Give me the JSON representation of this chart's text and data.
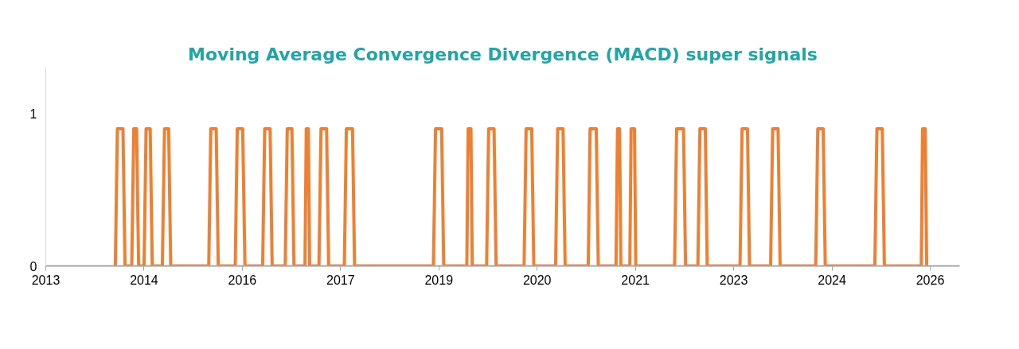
{
  "chart_data": {
    "type": "line",
    "title": "Moving Average Convergence Divergence (MACD) super signals",
    "xlim": [
      "2013-04-08",
      "2026-09-08"
    ],
    "ylim": [
      0,
      1.3
    ],
    "yticks": [
      0,
      1
    ],
    "xticks": [
      {
        "value": "2013-04-08",
        "label": "2013"
      },
      {
        "value": "2014-09-17",
        "label": "2014"
      },
      {
        "value": "2016-02-26",
        "label": "2016"
      },
      {
        "value": "2017-08-06",
        "label": "2017"
      },
      {
        "value": "2019-01-15",
        "label": "2019"
      },
      {
        "value": "2020-06-25",
        "label": "2020"
      },
      {
        "value": "2021-12-04",
        "label": "2021"
      },
      {
        "value": "2023-05-15",
        "label": "2023"
      },
      {
        "value": "2024-10-23",
        "label": "2024"
      },
      {
        "value": "2026-04-03",
        "label": "2026"
      }
    ],
    "grid": false,
    "marker": "none",
    "line_style": "solid",
    "series": [
      {
        "color": "#f07f32",
        "x": [
          "2014-04-16",
          "2014-04-27",
          "2014-05-27",
          "2014-06-07",
          "2014-07-13",
          "2014-07-24",
          "2014-08-08",
          "2014-08-19",
          "2014-09-17",
          "2014-09-28",
          "2014-10-20",
          "2014-10-31",
          "2014-12-24",
          "2015-01-05",
          "2015-01-27",
          "2015-02-07",
          "2015-08-30",
          "2015-09-10",
          "2015-10-09",
          "2015-10-20",
          "2016-01-19",
          "2016-01-30",
          "2016-02-28",
          "2016-03-11",
          "2016-06-14",
          "2016-06-25",
          "2016-07-24",
          "2016-08-04",
          "2016-10-13",
          "2016-10-24",
          "2016-11-18",
          "2016-11-29",
          "2017-01-27",
          "2017-02-03",
          "2017-02-14",
          "2017-02-21",
          "2017-04-12",
          "2017-04-23",
          "2017-05-23",
          "2017-06-03",
          "2017-08-26",
          "2017-09-06",
          "2017-10-09",
          "2017-10-20",
          "2018-12-17",
          "2018-12-28",
          "2019-01-30",
          "2019-02-10",
          "2019-06-14",
          "2019-06-21",
          "2019-07-06",
          "2019-07-13",
          "2019-09-28",
          "2019-10-09",
          "2019-11-07",
          "2019-11-18",
          "2020-04-16",
          "2020-04-27",
          "2020-05-27",
          "2020-06-07",
          "2020-10-02",
          "2020-10-13",
          "2020-11-11",
          "2020-11-22",
          "2021-03-26",
          "2021-04-05",
          "2021-05-08",
          "2021-05-19",
          "2021-08-22",
          "2021-08-30",
          "2021-09-10",
          "2021-09-17",
          "2021-11-04",
          "2021-11-11",
          "2021-11-29",
          "2021-12-06",
          "2022-07-02",
          "2022-07-13",
          "2022-08-19",
          "2022-08-30",
          "2022-11-04",
          "2022-11-15",
          "2022-12-14",
          "2022-12-24",
          "2023-06-18",
          "2023-06-29",
          "2023-07-28",
          "2023-08-08",
          "2023-11-29",
          "2023-12-10",
          "2024-01-08",
          "2024-01-19",
          "2024-07-28",
          "2024-08-08",
          "2024-09-06",
          "2024-09-17",
          "2025-06-10",
          "2025-06-21",
          "2025-07-20",
          "2025-07-31",
          "2026-02-14",
          "2026-02-21",
          "2026-03-07",
          "2026-03-15"
        ],
        "values": [
          0,
          0.9,
          0.9,
          0,
          0,
          0.9,
          0.9,
          0,
          0,
          0.9,
          0.9,
          0,
          0,
          0.9,
          0.9,
          0,
          0,
          0.9,
          0.9,
          0,
          0,
          0.9,
          0.9,
          0,
          0,
          0.9,
          0.9,
          0,
          0,
          0.9,
          0.9,
          0,
          0,
          0.9,
          0.9,
          0,
          0,
          0.9,
          0.9,
          0,
          0,
          0.9,
          0.9,
          0,
          0,
          0.9,
          0.9,
          0,
          0,
          0.9,
          0.9,
          0,
          0,
          0.9,
          0.9,
          0,
          0,
          0.9,
          0.9,
          0,
          0,
          0.9,
          0.9,
          0,
          0,
          0.9,
          0.9,
          0,
          0,
          0.9,
          0.9,
          0,
          0,
          0.9,
          0.9,
          0,
          0,
          0.9,
          0.9,
          0,
          0,
          0.9,
          0.9,
          0,
          0,
          0.9,
          0.9,
          0,
          0,
          0.9,
          0.9,
          0,
          0,
          0.9,
          0.9,
          0,
          0,
          0.9,
          0.9,
          0,
          0,
          0.9,
          0.9,
          0
        ]
      }
    ]
  }
}
